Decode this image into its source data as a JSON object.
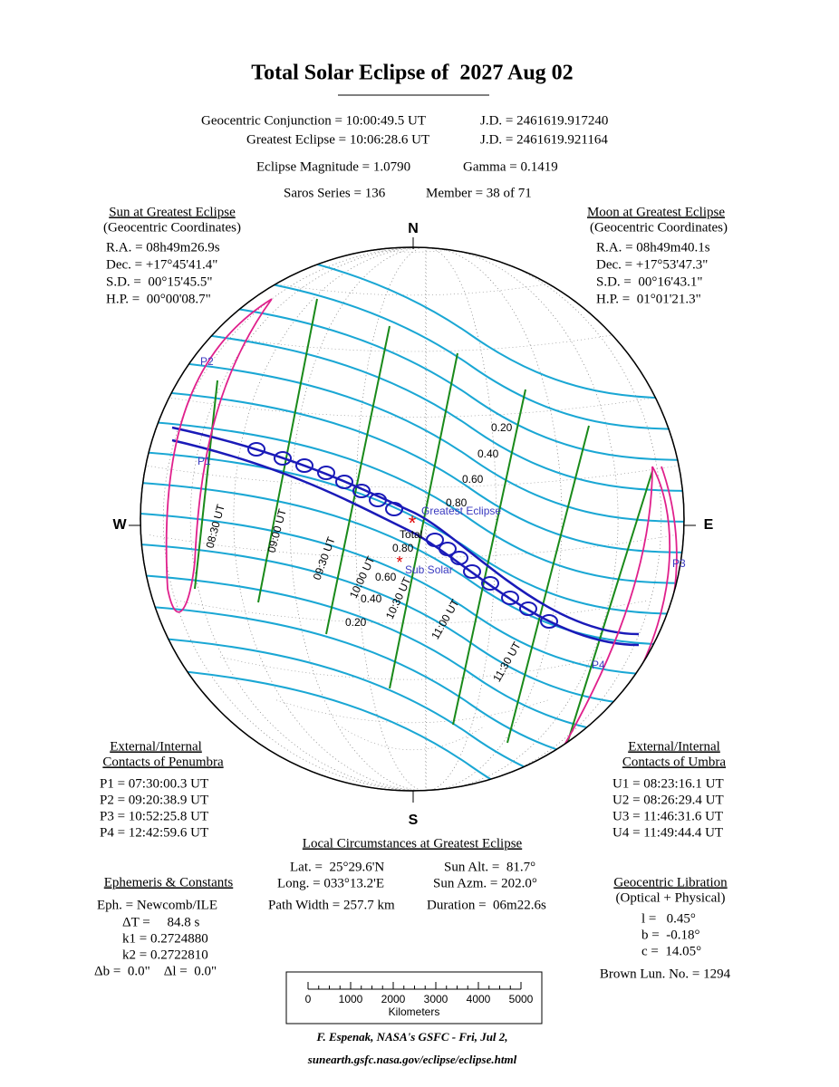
{
  "header": {
    "title": "Total Solar Eclipse of  2027 Aug 02",
    "lines": [
      [
        "Geocentric Conjunction = 10:00:49.5 UT",
        "J.D. = 2461619.917240"
      ],
      [
        "Greatest Eclipse = 10:06:28.6 UT",
        "J.D. = 2461619.921164"
      ],
      [
        "Eclipse Magnitude = 1.0790",
        "Gamma = 0.1419"
      ],
      [
        "Saros Series = 136",
        "Member = 38 of 71"
      ]
    ]
  },
  "sun": {
    "title": "Sun at Greatest Eclipse",
    "subtitle": "(Geocentric Coordinates)",
    "lines": [
      "R.A. = 08h49m26.9s",
      "Dec. = +17°45'41.4\"",
      "S.D. =  00°15'45.5\"",
      "H.P. =  00°00'08.7\""
    ]
  },
  "moon": {
    "title": "Moon at Greatest Eclipse",
    "subtitle": "(Geocentric Coordinates)",
    "lines": [
      "R.A. = 08h49m40.1s",
      "Dec. = +17°53'47.3\"",
      "S.D. =  00°16'43.1\"",
      "H.P. =  01°01'21.3\""
    ]
  },
  "compass": {
    "n": "N",
    "s": "S",
    "e": "E",
    "w": "W"
  },
  "map_labels": [
    "0.20",
    "0.40",
    "0.60",
    "0.80",
    "Greatest Eclipse",
    "Total",
    "0.80",
    "Sub Solar",
    "0.60",
    "0.40",
    "0.20",
    "P1",
    "P2",
    "P3",
    "P4",
    "08:30 UT",
    "09:00 UT",
    "09:30 UT",
    "10:00 UT",
    "10:30 UT",
    "11:00 UT",
    "11:30 UT"
  ],
  "penumbra": {
    "title": "External/Internal",
    "subtitle": "Contacts of Penumbra",
    "lines": [
      "P1 = 07:30:00.3 UT",
      "P2 = 09:20:38.9 UT",
      "P3 = 10:52:25.8 UT",
      "P4 = 12:42:59.6 UT"
    ]
  },
  "umbra": {
    "title": "External/Internal",
    "subtitle": "Contacts of Umbra",
    "lines": [
      "U1 = 08:23:16.1 UT",
      "U2 = 08:26:29.4 UT",
      "U3 = 11:46:31.6 UT",
      "U4 = 11:49:44.4 UT"
    ]
  },
  "local": {
    "title": "Local Circumstances at Greatest Eclipse",
    "rows": [
      [
        "Lat. =  25°29.6'N",
        "Sun Alt. =  81.7°"
      ],
      [
        "Long. = 033°13.2'E",
        "Sun Azm. = 202.0°"
      ],
      [
        "Path Width = 257.7 km",
        "Duration =  06m22.6s"
      ]
    ]
  },
  "ephemeris": {
    "title": "Ephemeris & Constants",
    "lines": [
      "Eph. = Newcomb/ILE",
      "ΔT =     84.8 s",
      "k1 = 0.2724880",
      "k2 = 0.2722810",
      "Δb =  0.0\"    Δl =  0.0\""
    ]
  },
  "libration": {
    "title": "Geocentric Libration",
    "subtitle": "(Optical + Physical)",
    "lines": [
      "l =   0.45°",
      "b =  -0.18°",
      "c =  14.05°"
    ],
    "lunation": "Brown Lun. No. = 1294"
  },
  "scale": {
    "ticks": [
      "0",
      "1000",
      "2000",
      "3000",
      "4000",
      "5000"
    ],
    "unit": "Kilometers"
  },
  "footer": [
    "F. Espenak, NASA's GSFC - Fri, Jul 2,",
    "sunearth.gsfc.nasa.gov/eclipse/eclipse.html"
  ]
}
